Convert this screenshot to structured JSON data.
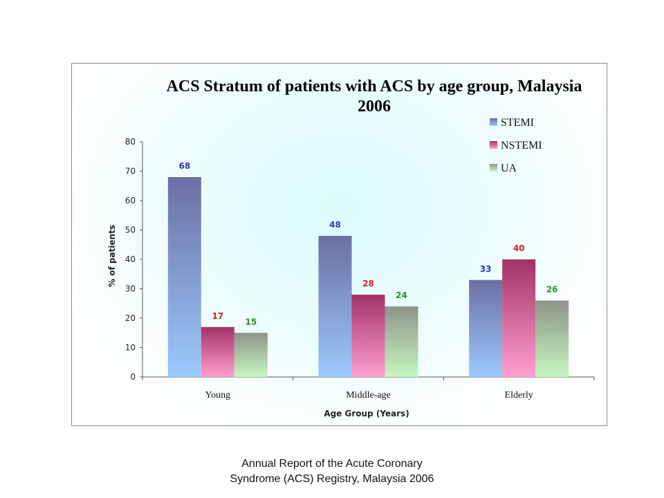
{
  "chart_data": {
    "type": "bar",
    "title_line_1": "ACS Stratum of patients with ACS by age group, Malaysia",
    "title_line_2": "2006",
    "xlabel": "Age Group (Years)",
    "ylabel": "% of patients",
    "categories": [
      "Young",
      "Middle-age",
      "Elderly"
    ],
    "series": [
      {
        "name": "STEMI",
        "values": [
          68,
          48,
          33
        ],
        "color": "#6b6fa3",
        "label_color": "#2a3aa8"
      },
      {
        "name": "NSTEMI",
        "values": [
          17,
          28,
          40
        ],
        "color": "#a33366",
        "label_color": "#d42020"
      },
      {
        "name": "UA",
        "values": [
          15,
          24,
          26
        ],
        "color": "#8e9488",
        "label_color": "#2e8a2e"
      }
    ],
    "ylim": [
      0,
      80
    ],
    "yticks": [
      "0",
      "10",
      "20",
      "30",
      "40",
      "50",
      "60",
      "70",
      "80"
    ],
    "legend_position": "top-right",
    "grid": false
  },
  "caption": {
    "line1": "Annual Report of the Acute Coronary",
    "line2": "Syndrome (ACS) Registry, Malaysia 2006"
  }
}
